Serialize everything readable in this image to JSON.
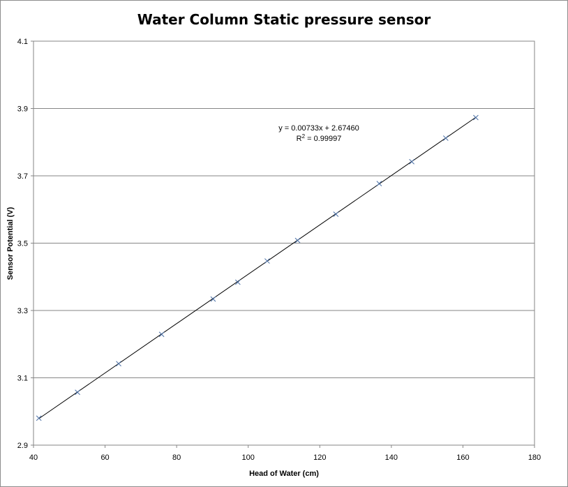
{
  "chart_data": {
    "type": "scatter",
    "title": "Water Column Static pressure sensor",
    "xlabel": "Head of Water (cm)",
    "ylabel": "Sensor Potential (V)",
    "xlim": [
      40,
      180
    ],
    "ylim": [
      2.9,
      4.1
    ],
    "x_ticks": [
      "40",
      "60",
      "80",
      "100",
      "120",
      "140",
      "160",
      "180"
    ],
    "y_ticks": [
      "2.9",
      "3.1",
      "3.3",
      "3.5",
      "3.7",
      "3.9",
      "4.1"
    ],
    "horizontal_grid": true,
    "vertical_grid": false,
    "legend": false,
    "marker_color": "#4a6fa5",
    "trendline_color": "#000000",
    "points": [
      {
        "x": 41.5,
        "y": 2.98
      },
      {
        "x": 52.3,
        "y": 3.057
      },
      {
        "x": 63.8,
        "y": 3.142
      },
      {
        "x": 75.8,
        "y": 3.229
      },
      {
        "x": 90.2,
        "y": 3.334
      },
      {
        "x": 97.1,
        "y": 3.384
      },
      {
        "x": 105.3,
        "y": 3.447
      },
      {
        "x": 113.8,
        "y": 3.508
      },
      {
        "x": 124.5,
        "y": 3.586
      },
      {
        "x": 136.6,
        "y": 3.677
      },
      {
        "x": 145.7,
        "y": 3.742
      },
      {
        "x": 155.2,
        "y": 3.812
      },
      {
        "x": 163.6,
        "y": 3.873
      }
    ],
    "trendline": {
      "slope": 0.00733,
      "intercept": 2.6746,
      "x_range": [
        41.5,
        163.6
      ],
      "equation": "y = 0.00733x + 2.67460",
      "r_squared_label": "R",
      "r_squared_exponent": "2",
      "r_squared_value": " = 0.99997"
    }
  }
}
